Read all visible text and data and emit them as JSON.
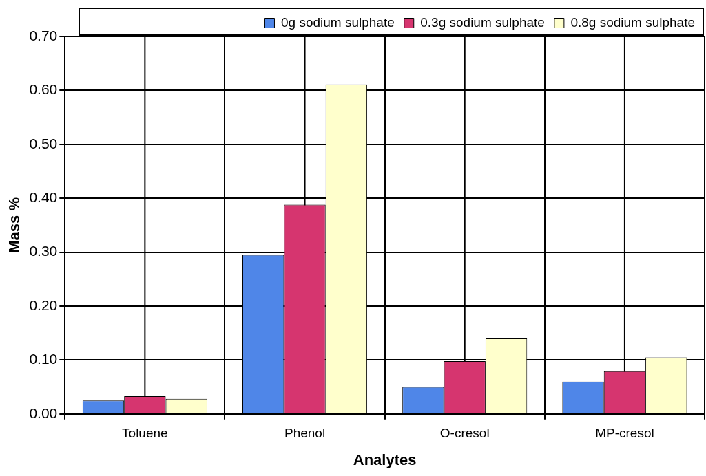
{
  "chart_data": {
    "type": "bar",
    "xlabel": "Analytes",
    "ylabel": "Mass %",
    "categories": [
      "Toluene",
      "Phenol",
      "O-cresol",
      "MP-cresol"
    ],
    "series": [
      {
        "name": "0g sodium sulphate",
        "color": "#4f86e8",
        "values": [
          0.025,
          0.295,
          0.05,
          0.06
        ]
      },
      {
        "name": "0.3g sodium sulphate",
        "color": "#d6356f",
        "values": [
          0.033,
          0.388,
          0.098,
          0.079
        ]
      },
      {
        "name": "0.8g sodium sulphate",
        "color": "#ffffcc",
        "values": [
          0.028,
          0.611,
          0.14,
          0.105
        ]
      }
    ],
    "ylim": [
      0,
      0.7
    ],
    "yticks": [
      {
        "value": 0,
        "label": "0.00"
      },
      {
        "value": 0.1,
        "label": "0.10"
      },
      {
        "value": 0.2,
        "label": "0.20"
      },
      {
        "value": 0.3,
        "label": "0.30"
      },
      {
        "value": 0.4,
        "label": "0.40"
      },
      {
        "value": 0.5,
        "label": "0.50"
      },
      {
        "value": 0.6,
        "label": "0.60"
      },
      {
        "value": 0.7,
        "label": "0.70"
      }
    ],
    "grid": true,
    "legend": "top"
  }
}
